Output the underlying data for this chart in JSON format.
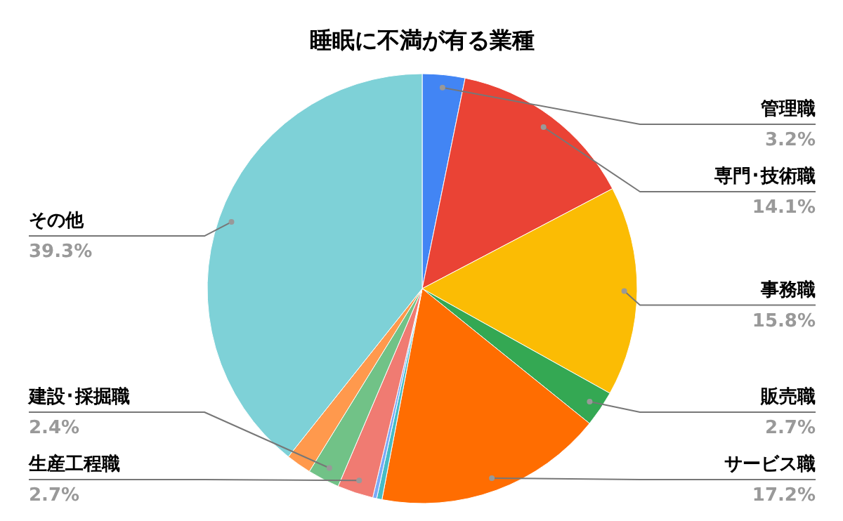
{
  "chart_data": {
    "type": "pie",
    "title": "睡眠に不満が有る業種",
    "categories": [
      "管理職",
      "専門･技術職",
      "事務職",
      "販売職",
      "サービス職",
      null,
      null,
      "生産工程職",
      "建設･採掘職",
      null,
      "その他"
    ],
    "values": [
      3.2,
      14.1,
      15.8,
      2.7,
      17.2,
      0.4,
      0.3,
      2.7,
      2.4,
      1.9,
      39.3
    ],
    "value_labels": [
      "3.2%",
      "14.1%",
      "15.8%",
      "2.7%",
      "17.2%",
      null,
      null,
      "2.7%",
      "2.4%",
      null,
      "39.3%"
    ],
    "colors": [
      "#4285f4",
      "#ea4335",
      "#fbbc04",
      "#34a853",
      "#ff6d01",
      "#46bdc6",
      "#7baaf7",
      "#f07b72",
      "#71c287",
      "#ff994d",
      "#7ed1d7"
    ]
  }
}
